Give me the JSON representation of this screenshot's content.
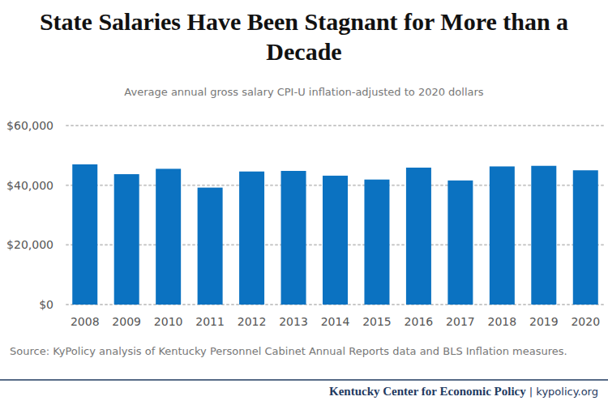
{
  "chart_data": {
    "type": "bar",
    "title": "State Salaries Have Been Stagnant for More than a Decade",
    "subtitle": "Average annual gross salary CPI-U inflation-adjusted to 2020 dollars",
    "source": "Source: KyPolicy analysis of Kentucky Personnel Cabinet Annual Reports data and BLS Inflation measures.",
    "footer": [
      "Kentucky Center for Economic Policy",
      "| kypolicy.org"
    ],
    "categories": [
      "2008",
      "2009",
      "2010",
      "2011",
      "2012",
      "2013",
      "2014",
      "2015",
      "2016",
      "2017",
      "2018",
      "2019",
      "2020"
    ],
    "values": [
      47000,
      43700,
      45500,
      39200,
      44600,
      44800,
      43200,
      41900,
      45900,
      41600,
      46300,
      46500,
      45000
    ],
    "color": "#0b72c1",
    "ylim": [
      0,
      60000
    ],
    "yticks": [
      {
        "value": 0,
        "label": "$0"
      },
      {
        "value": 20000,
        "label": "$20,000"
      },
      {
        "value": 40000,
        "label": "$40,000"
      },
      {
        "value": 60000,
        "label": "$60,000"
      }
    ],
    "grid": true
  }
}
